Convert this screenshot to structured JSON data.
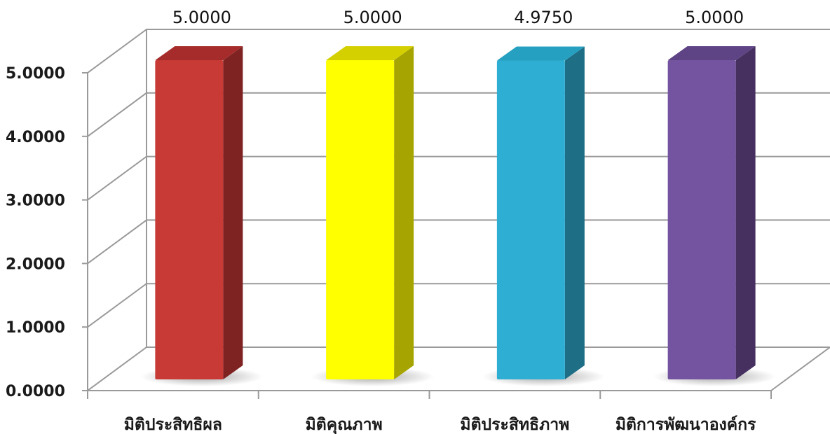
{
  "chart_data": {
    "type": "bar",
    "title": "",
    "xlabel": "",
    "ylabel": "",
    "categories": [
      "มิติประสิทธิผล",
      "มิติคุณภาพ",
      "มิติประสิทธิภาพ",
      "มิติการพัฒนาองค์กร"
    ],
    "values": [
      5.0,
      5.0,
      4.975,
      5.0
    ],
    "value_labels": [
      "5.0000",
      "5.0000",
      "4.9750",
      "5.0000"
    ],
    "yticks": [
      "0.0000",
      "1.0000",
      "2.0000",
      "3.0000",
      "4.0000",
      "5.0000"
    ],
    "ylim": [
      0,
      5
    ],
    "grid": true,
    "style": "3d-column",
    "colors": [
      {
        "front": "#c83a36",
        "side": "#7e2222",
        "top": "#a52c2a"
      },
      {
        "front": "#ffff00",
        "side": "#a6a400",
        "top": "#d4d000"
      },
      {
        "front": "#2eaed2",
        "side": "#1e6e85",
        "top": "#26a0c0"
      },
      {
        "front": "#7454a0",
        "side": "#46305f",
        "top": "#5e4484"
      }
    ]
  }
}
